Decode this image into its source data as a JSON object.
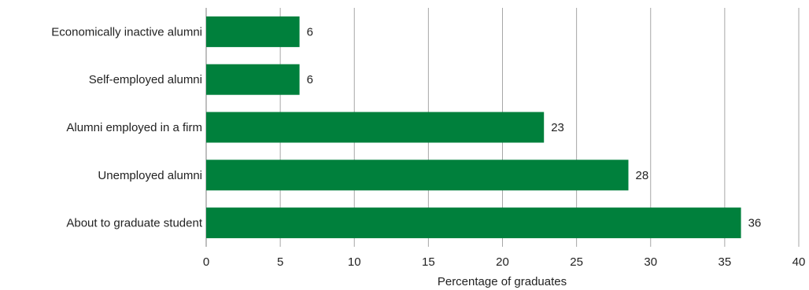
{
  "chart_data": {
    "type": "bar",
    "orientation": "horizontal",
    "categories": [
      "Economically inactive alumni",
      "Self-employed alumni",
      "Alumni employed in a firm",
      "Unemployed alumni",
      "About to graduate student"
    ],
    "values": [
      6.3,
      6.3,
      22.8,
      28.5,
      36.1
    ],
    "data_labels": [
      "6",
      "6",
      "23",
      "28",
      "36"
    ],
    "title": "",
    "xlabel": "Percentage of graduates",
    "ylabel": "",
    "xlim": [
      0,
      40
    ],
    "xticks": [
      "0",
      "5",
      "10",
      "15",
      "20",
      "25",
      "30",
      "35",
      "40"
    ],
    "grid": "vertical",
    "legend": "none",
    "bar_color": "#00803c"
  }
}
